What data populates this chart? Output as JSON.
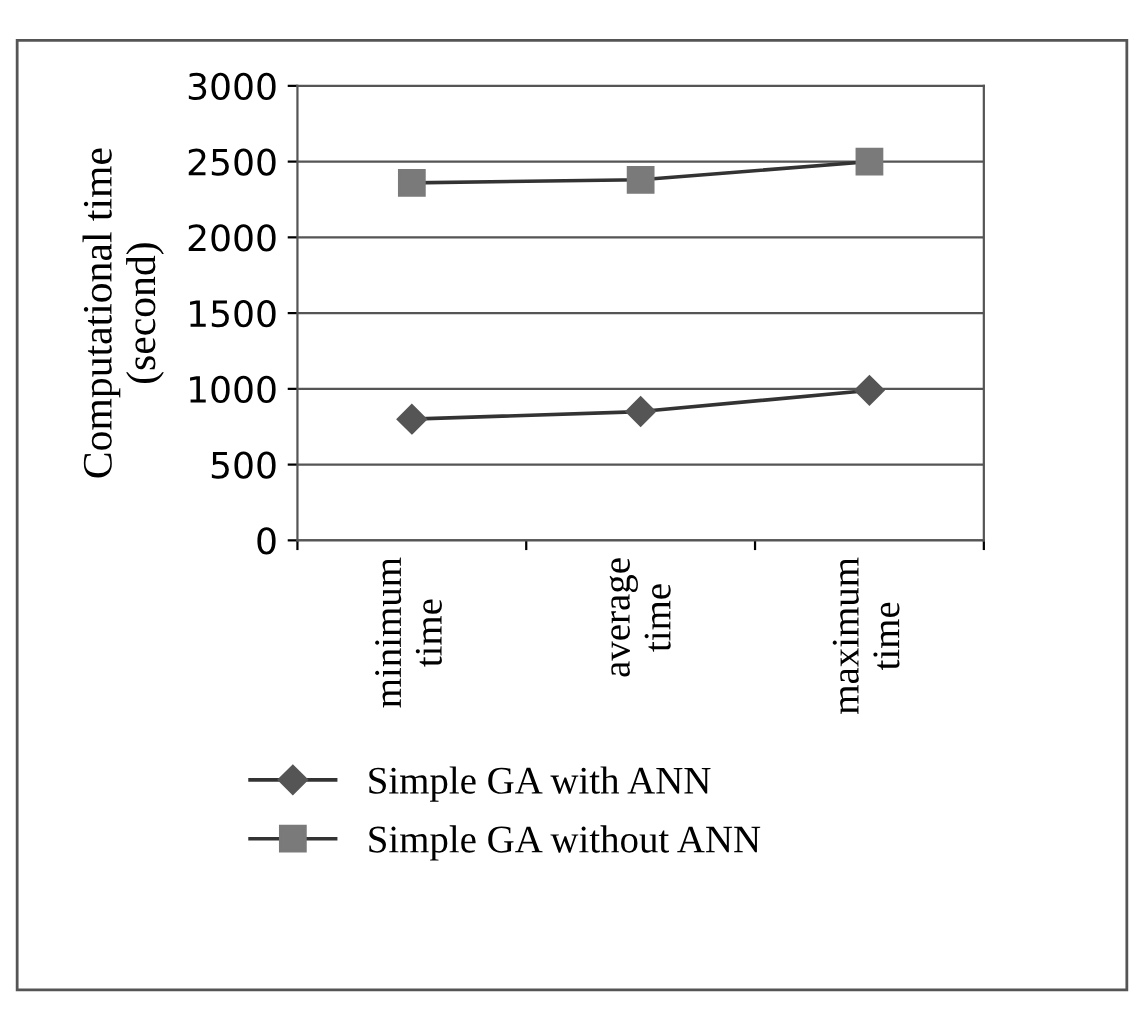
{
  "chart_data": {
    "type": "line",
    "ylabel": "Computational time\n(second)",
    "categories": [
      "minimum\ntime",
      "average\ntime",
      "maximum\ntime"
    ],
    "series": [
      {
        "name": "Simple GA with ANN",
        "color": "#555555",
        "marker": "diamond",
        "values": [
          800,
          850,
          990
        ]
      },
      {
        "name": "Simple GA without ANN",
        "color": "#7a7a7a",
        "marker": "square",
        "values": [
          2360,
          2380,
          2500
        ]
      }
    ],
    "ylim": [
      0,
      3000
    ],
    "yticks": [
      0,
      500,
      1000,
      1500,
      2000,
      2500,
      3000
    ],
    "grid": "y",
    "legend": "bottom",
    "line_style": "solid"
  }
}
